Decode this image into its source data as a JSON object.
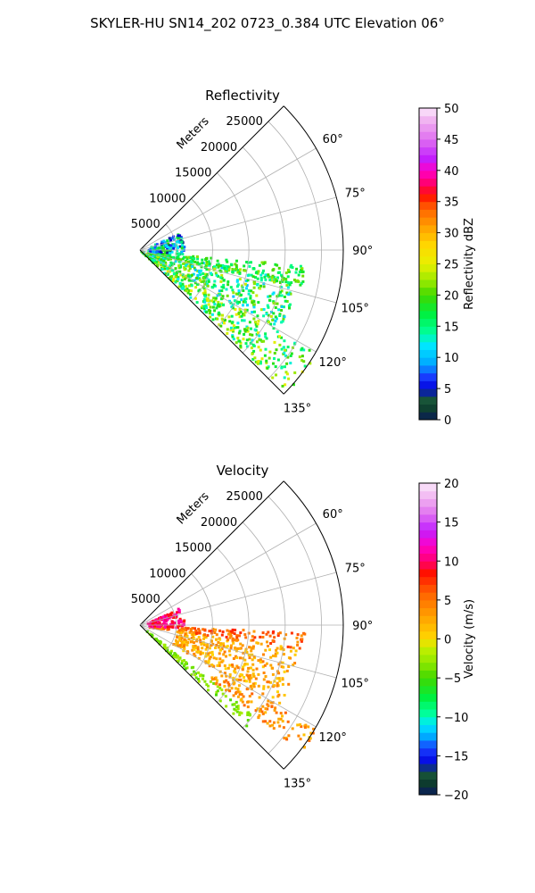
{
  "figure": {
    "suptitle": "SKYLER-HU  SN14_202  0723_0.384 UTC Elevation 06°"
  },
  "chart_data": [
    {
      "type": "heatmap",
      "subtype": "polar-sector-radar",
      "title": "Reflectivity",
      "r_axis_label": "Meters",
      "r_ticks": [
        5000,
        10000,
        15000,
        20000,
        25000
      ],
      "r_tick_labels": [
        "5000",
        "10000",
        "15000",
        "20000",
        "25000"
      ],
      "r_max": 28000,
      "theta_range_deg": [
        45,
        135
      ],
      "theta_ticks_deg": [
        60,
        75,
        90,
        105,
        120,
        135
      ],
      "theta_tick_labels": [
        "60°",
        "75°",
        "90°",
        "105°",
        "120°",
        "135°"
      ],
      "theta_grid_deg": [
        45,
        60,
        75,
        90,
        105,
        120,
        135
      ],
      "grid": true,
      "colorbar": {
        "label": "Reflectivity dBZ",
        "range": [
          0,
          50
        ],
        "ticks": [
          0,
          5,
          10,
          15,
          20,
          25,
          30,
          35,
          40,
          45,
          50
        ],
        "tick_labels": [
          "0",
          "5",
          "10",
          "15",
          "20",
          "25",
          "30",
          "35",
          "40",
          "45",
          "50"
        ],
        "color_stops": [
          {
            "value": 0,
            "color": "#0a1a5c"
          },
          {
            "value": 1.5,
            "color": "#0d3b2e"
          },
          {
            "value": 3.5,
            "color": "#1a5a3a"
          },
          {
            "value": 5,
            "color": "#0000dd"
          },
          {
            "value": 7,
            "color": "#1a40ff"
          },
          {
            "value": 9,
            "color": "#00a8ff"
          },
          {
            "value": 12,
            "color": "#00e8ff"
          },
          {
            "value": 14,
            "color": "#00ff9a"
          },
          {
            "value": 17,
            "color": "#00f040"
          },
          {
            "value": 20,
            "color": "#40d800"
          },
          {
            "value": 22,
            "color": "#90e800"
          },
          {
            "value": 25,
            "color": "#e8f000"
          },
          {
            "value": 28,
            "color": "#ffd800"
          },
          {
            "value": 31,
            "color": "#ffa000"
          },
          {
            "value": 34,
            "color": "#ff6000"
          },
          {
            "value": 36,
            "color": "#ff1000"
          },
          {
            "value": 38,
            "color": "#ff0070"
          },
          {
            "value": 40,
            "color": "#ff00c8"
          },
          {
            "value": 42,
            "color": "#c020ff"
          },
          {
            "value": 45,
            "color": "#e070f0"
          },
          {
            "value": 48,
            "color": "#f0b0f0"
          },
          {
            "value": 50,
            "color": "#fbe8fb"
          }
        ]
      },
      "echo_regions": [
        {
          "theta_deg": [
            120,
            134
          ],
          "r_m": [
            0,
            28000
          ],
          "value": [
            12,
            26
          ]
        },
        {
          "theta_deg": [
            100,
            120
          ],
          "r_m": [
            1000,
            22000
          ],
          "value": [
            10,
            24
          ]
        },
        {
          "theta_deg": [
            95,
            103
          ],
          "r_m": [
            1000,
            23000
          ],
          "value": [
            14,
            22
          ]
        },
        {
          "theta_deg": [
            65,
            95
          ],
          "r_m": [
            1000,
            6000
          ],
          "value": [
            4,
            20
          ]
        }
      ]
    },
    {
      "type": "heatmap",
      "subtype": "polar-sector-radar",
      "title": "Velocity",
      "r_axis_label": "Meters",
      "r_ticks": [
        5000,
        10000,
        15000,
        20000,
        25000
      ],
      "r_tick_labels": [
        "5000",
        "10000",
        "15000",
        "20000",
        "25000"
      ],
      "r_max": 28000,
      "theta_range_deg": [
        45,
        135
      ],
      "theta_ticks_deg": [
        60,
        75,
        90,
        105,
        120,
        135
      ],
      "theta_tick_labels": [
        "60°",
        "75°",
        "90°",
        "105°",
        "120°",
        "135°"
      ],
      "theta_grid_deg": [
        45,
        60,
        75,
        90,
        105,
        120,
        135
      ],
      "grid": true,
      "colorbar": {
        "label": "Velocity (m/s)",
        "range": [
          -20,
          20
        ],
        "ticks": [
          -20,
          -15,
          -10,
          -5,
          0,
          5,
          10,
          15,
          20
        ],
        "tick_labels": [
          "−20",
          "−15",
          "−10",
          "−5",
          "0",
          "5",
          "10",
          "15",
          "20"
        ],
        "color_stops": [
          {
            "value": -20,
            "color": "#0a1a5c"
          },
          {
            "value": -18.5,
            "color": "#0d3b2e"
          },
          {
            "value": -17,
            "color": "#1a5a3a"
          },
          {
            "value": -16,
            "color": "#0000dd"
          },
          {
            "value": -14,
            "color": "#1a40ff"
          },
          {
            "value": -12.5,
            "color": "#00a8ff"
          },
          {
            "value": -11,
            "color": "#00e8ff"
          },
          {
            "value": -9.5,
            "color": "#00ff9a"
          },
          {
            "value": -7.5,
            "color": "#00f040"
          },
          {
            "value": -5,
            "color": "#40d800"
          },
          {
            "value": -3,
            "color": "#90e800"
          },
          {
            "value": -1,
            "color": "#c8f000"
          },
          {
            "value": 0,
            "color": "#ffd800"
          },
          {
            "value": 3,
            "color": "#ffa000"
          },
          {
            "value": 6,
            "color": "#ff6000"
          },
          {
            "value": 8.5,
            "color": "#ff1000"
          },
          {
            "value": 10,
            "color": "#ff0070"
          },
          {
            "value": 12,
            "color": "#ff00c8"
          },
          {
            "value": 14,
            "color": "#c020ff"
          },
          {
            "value": 16,
            "color": "#e070f0"
          },
          {
            "value": 18,
            "color": "#f0b0f0"
          },
          {
            "value": 20,
            "color": "#fbe8fb"
          }
        ]
      },
      "echo_regions": [
        {
          "theta_deg": [
            128,
            134
          ],
          "r_m": [
            1000,
            20000
          ],
          "value": [
            -5,
            -2
          ]
        },
        {
          "theta_deg": [
            120,
            128
          ],
          "r_m": [
            12000,
            28000
          ],
          "value": [
            1,
            6
          ]
        },
        {
          "theta_deg": [
            98,
            120
          ],
          "r_m": [
            5000,
            22000
          ],
          "value": [
            0,
            5
          ]
        },
        {
          "theta_deg": [
            92,
            98
          ],
          "r_m": [
            1000,
            23000
          ],
          "value": [
            3,
            8
          ]
        },
        {
          "theta_deg": [
            65,
            92
          ],
          "r_m": [
            1000,
            6000
          ],
          "value": [
            8,
            12
          ]
        }
      ]
    }
  ]
}
